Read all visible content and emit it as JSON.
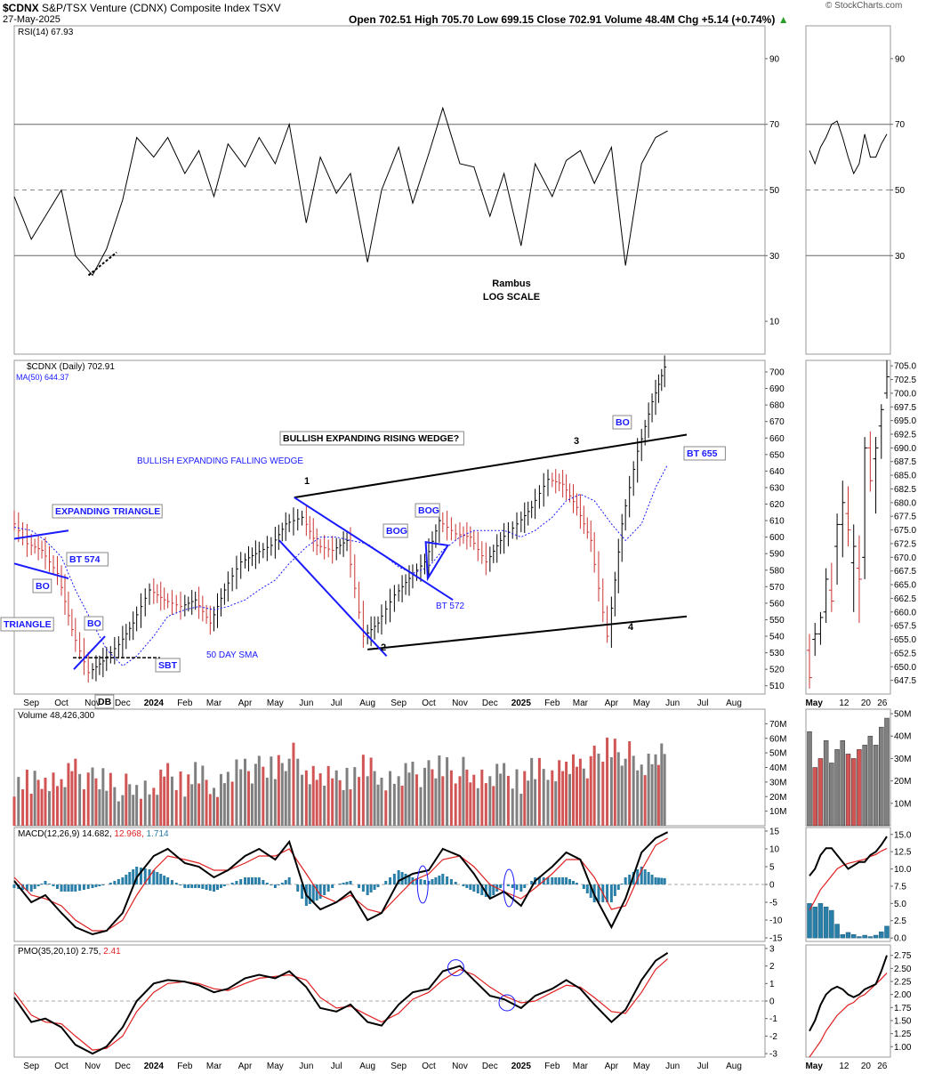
{
  "header": {
    "symbol": "$CDNX",
    "name": "S&P/TSX Venture (CDNX) Composite Index",
    "exchange": "TSXV",
    "date": "27-May-2025",
    "ohlc_text": "Open 702.51  High 705.70  Low 699.15  Close 702.91  Volume 48.4M  Chg +5.14 (+0.74%)",
    "change_arrow": "▲",
    "watermark": "© StockCharts.com"
  },
  "colors": {
    "up": "#000000",
    "down": "#cc3333",
    "accent": "#1a1aff",
    "vol_up": "#808080",
    "vol_down": "#d25555",
    "hist": "#2a7fa8"
  },
  "chart_data": [
    {
      "type": "line",
      "panel": "rsi",
      "legend": "RSI(14) 67.93",
      "ylim": [
        0,
        100
      ],
      "yticks": [
        10,
        30,
        50,
        70,
        90
      ],
      "lines": [
        30,
        50,
        70
      ],
      "x": [
        "2023-08-15",
        "2023-09-01",
        "2023-09-15",
        "2023-10-01",
        "2023-10-15",
        "2023-11-01",
        "2023-11-15",
        "2023-12-01",
        "2023-12-15",
        "2024-01-01",
        "2024-01-15",
        "2024-02-01",
        "2024-02-15",
        "2024-03-01",
        "2024-03-15",
        "2024-04-01",
        "2024-04-15",
        "2024-05-01",
        "2024-05-15",
        "2024-06-01",
        "2024-06-15",
        "2024-07-01",
        "2024-07-15",
        "2024-08-01",
        "2024-08-15",
        "2024-09-01",
        "2024-09-15",
        "2024-10-01",
        "2024-10-15",
        "2024-11-01",
        "2024-11-15",
        "2024-12-01",
        "2024-12-15",
        "2025-01-01",
        "2025-01-15",
        "2025-02-01",
        "2025-02-15",
        "2025-03-01",
        "2025-03-15",
        "2025-04-01",
        "2025-04-15",
        "2025-05-01",
        "2025-05-15",
        "2025-05-27"
      ],
      "values": [
        48,
        35,
        42,
        50,
        30,
        24,
        32,
        47,
        66,
        60,
        66,
        55,
        62,
        48,
        64,
        57,
        66,
        58,
        70,
        40,
        60,
        49,
        55,
        28,
        50,
        63,
        46,
        61,
        75,
        58,
        57,
        42,
        55,
        33,
        58,
        48,
        59,
        62,
        52,
        63,
        27,
        58,
        66,
        68
      ],
      "notes": [
        "Rambus",
        "LOG SCALE"
      ]
    },
    {
      "type": "candlestick",
      "panel": "price",
      "legend": "$CDNX (Daily) 702.91",
      "ma_legend": "MA(50) 644.37",
      "ylim": [
        505,
        707
      ],
      "yticks": [
        510,
        520,
        530,
        540,
        550,
        560,
        570,
        580,
        590,
        600,
        610,
        620,
        630,
        640,
        650,
        660,
        670,
        680,
        690,
        700
      ],
      "x": [
        "2023-08-15",
        "2023-09-01",
        "2023-09-15",
        "2023-10-01",
        "2023-10-15",
        "2023-11-01",
        "2023-11-15",
        "2023-12-01",
        "2023-12-15",
        "2024-01-01",
        "2024-01-15",
        "2024-02-01",
        "2024-02-15",
        "2024-03-01",
        "2024-03-15",
        "2024-04-01",
        "2024-04-15",
        "2024-05-01",
        "2024-05-15",
        "2024-06-01",
        "2024-06-15",
        "2024-07-01",
        "2024-07-15",
        "2024-08-01",
        "2024-08-15",
        "2024-09-01",
        "2024-09-15",
        "2024-10-01",
        "2024-10-15",
        "2024-11-01",
        "2024-11-15",
        "2024-12-01",
        "2024-12-15",
        "2025-01-01",
        "2025-01-15",
        "2025-02-01",
        "2025-02-15",
        "2025-03-01",
        "2025-03-15",
        "2025-04-01",
        "2025-04-15",
        "2025-05-01",
        "2025-05-15",
        "2025-05-27"
      ],
      "close": [
        612,
        596,
        592,
        578,
        544,
        518,
        525,
        535,
        548,
        568,
        562,
        558,
        562,
        548,
        568,
        585,
        590,
        595,
        608,
        612,
        595,
        592,
        598,
        540,
        548,
        565,
        575,
        585,
        610,
        602,
        600,
        585,
        598,
        608,
        618,
        635,
        632,
        618,
        598,
        540,
        608,
        652,
        682,
        703
      ],
      "ma50": [
        606,
        604,
        598,
        588,
        568,
        548,
        532,
        522,
        528,
        540,
        552,
        556,
        558,
        556,
        558,
        562,
        568,
        574,
        584,
        594,
        600,
        600,
        598,
        596,
        590,
        582,
        578,
        582,
        592,
        600,
        604,
        604,
        604,
        600,
        604,
        612,
        622,
        626,
        622,
        608,
        598,
        608,
        630,
        644
      ],
      "annotations": [
        {
          "text": "EXPANDING TRIANGLE",
          "style": "blue-box"
        },
        {
          "text": "BT 574",
          "style": "blue-box"
        },
        {
          "text": "BO",
          "style": "blue-box"
        },
        {
          "text": "TRIANGLE",
          "style": "blue-box"
        },
        {
          "text": "BO",
          "style": "blue-box"
        },
        {
          "text": "SBT",
          "style": "blue-box"
        },
        {
          "text": "DB",
          "style": "black-box"
        },
        {
          "text": "50 DAY SMA",
          "style": "blue-plain"
        },
        {
          "text": "BULLISH EXPANDING FALLING WEDGE",
          "style": "blue-plain"
        },
        {
          "text": "BULLISH EXPANDING RISING WEDGE?",
          "style": "black-box"
        },
        {
          "text": "BOG",
          "style": "blue-box"
        },
        {
          "text": "BOG",
          "style": "blue-box"
        },
        {
          "text": "BT 572",
          "style": "blue-plain"
        },
        {
          "text": "BO",
          "style": "blue-box"
        },
        {
          "text": "BT 655",
          "style": "blue-box"
        },
        {
          "text": "1",
          "style": "label"
        },
        {
          "text": "2",
          "style": "label"
        },
        {
          "text": "3",
          "style": "label"
        },
        {
          "text": "4",
          "style": "label"
        }
      ],
      "trendlines": [
        {
          "from": [
            "2024-05-20",
            624
          ],
          "to": [
            "2025-06-15",
            662
          ]
        },
        {
          "from": [
            "2024-08-01",
            532
          ],
          "to": [
            "2025-06-15",
            552
          ]
        },
        {
          "from": [
            "2024-05-20",
            624
          ],
          "to": [
            "2024-10-25",
            562
          ]
        },
        {
          "from": [
            "2024-05-05",
            598
          ],
          "to": [
            "2024-08-20",
            528
          ]
        }
      ]
    },
    {
      "type": "bar",
      "panel": "volume",
      "legend": "Volume 48,426,300",
      "ylim": [
        0,
        80
      ],
      "yticks": [
        "10M",
        "20M",
        "30M",
        "40M",
        "50M",
        "60M",
        "70M"
      ],
      "x": [
        "2023-08-15",
        "2023-09-01",
        "2023-09-15",
        "2023-10-01",
        "2023-10-15",
        "2023-11-01",
        "2023-11-15",
        "2023-12-01",
        "2023-12-15",
        "2024-01-01",
        "2024-01-15",
        "2024-02-01",
        "2024-02-15",
        "2024-03-01",
        "2024-03-15",
        "2024-04-01",
        "2024-04-15",
        "2024-05-01",
        "2024-05-15",
        "2024-06-01",
        "2024-06-15",
        "2024-07-01",
        "2024-07-15",
        "2024-08-01",
        "2024-08-15",
        "2024-09-01",
        "2024-09-15",
        "2024-10-01",
        "2024-10-15",
        "2024-11-01",
        "2024-11-15",
        "2024-12-01",
        "2024-12-15",
        "2025-01-01",
        "2025-01-15",
        "2025-02-01",
        "2025-02-15",
        "2025-03-01",
        "2025-03-15",
        "2025-04-01",
        "2025-04-15",
        "2025-05-01",
        "2025-05-15",
        "2025-05-27"
      ],
      "values": [
        30,
        28,
        35,
        30,
        40,
        30,
        32,
        25,
        28,
        22,
        35,
        30,
        35,
        28,
        35,
        40,
        38,
        40,
        50,
        38,
        32,
        30,
        35,
        40,
        35,
        32,
        38,
        35,
        42,
        38,
        35,
        30,
        35,
        32,
        38,
        40,
        42,
        40,
        45,
        55,
        50,
        42,
        45,
        48
      ]
    },
    {
      "type": "line",
      "panel": "macd",
      "legend": "MACD(12,26,9) 14.682, 12.968, 1.714",
      "ylim": [
        -16,
        16
      ],
      "yticks": [
        -15,
        -10,
        -5,
        0,
        5,
        10,
        15
      ],
      "x": [
        "2023-08-15",
        "2023-09-01",
        "2023-09-15",
        "2023-10-01",
        "2023-10-15",
        "2023-11-01",
        "2023-11-15",
        "2023-12-01",
        "2023-12-15",
        "2024-01-01",
        "2024-01-15",
        "2024-02-01",
        "2024-02-15",
        "2024-03-01",
        "2024-03-15",
        "2024-04-01",
        "2024-04-15",
        "2024-05-01",
        "2024-05-15",
        "2024-06-01",
        "2024-06-15",
        "2024-07-01",
        "2024-07-15",
        "2024-08-01",
        "2024-08-15",
        "2024-09-01",
        "2024-09-15",
        "2024-10-01",
        "2024-10-15",
        "2024-11-01",
        "2024-11-15",
        "2024-12-01",
        "2024-12-15",
        "2025-01-01",
        "2025-01-15",
        "2025-02-01",
        "2025-02-15",
        "2025-03-01",
        "2025-03-15",
        "2025-04-01",
        "2025-04-15",
        "2025-05-01",
        "2025-05-15",
        "2025-05-27"
      ],
      "macd": [
        1,
        -5,
        -3,
        -8,
        -12,
        -14,
        -13,
        -8,
        2,
        8,
        10,
        6,
        5,
        2,
        4,
        8,
        10,
        7,
        12,
        -3,
        -7,
        -5,
        -2,
        -10,
        -8,
        1,
        3,
        4,
        10,
        8,
        3,
        -4,
        -2,
        -6,
        1,
        5,
        9,
        7,
        -3,
        -12,
        -4,
        9,
        13,
        14.7
      ],
      "signal": [
        2,
        -3,
        -4,
        -6,
        -10,
        -13,
        -13,
        -10,
        -3,
        4,
        8,
        7,
        6,
        4,
        4,
        6,
        8,
        8,
        10,
        3,
        -3,
        -5,
        -3,
        -7,
        -8,
        -3,
        1,
        3,
        7,
        8,
        5,
        0,
        -2,
        -4,
        -1,
        3,
        7,
        7,
        2,
        -7,
        -6,
        4,
        11,
        13
      ],
      "histogram": [
        -1,
        -2,
        1,
        -2,
        -2,
        -1,
        0,
        2,
        5,
        4,
        2,
        -1,
        -1,
        -2,
        0,
        2,
        2,
        -1,
        2,
        -6,
        -4,
        0,
        1,
        -3,
        0,
        4,
        2,
        1,
        3,
        0,
        -2,
        -4,
        0,
        -2,
        2,
        2,
        2,
        0,
        -5,
        -5,
        2,
        5,
        2,
        1.7
      ]
    },
    {
      "type": "line",
      "panel": "pmo",
      "legend": "PMO(35,20,10) 2.75, 2.41",
      "ylim": [
        -3.2,
        3.2
      ],
      "yticks": [
        -3,
        -2,
        -1,
        0,
        1,
        2,
        3
      ],
      "x": [
        "2023-08-15",
        "2023-09-01",
        "2023-09-15",
        "2023-10-01",
        "2023-10-15",
        "2023-11-01",
        "2023-11-15",
        "2023-12-01",
        "2023-12-15",
        "2024-01-01",
        "2024-01-15",
        "2024-02-01",
        "2024-02-15",
        "2024-03-01",
        "2024-03-15",
        "2024-04-01",
        "2024-04-15",
        "2024-05-01",
        "2024-05-15",
        "2024-06-01",
        "2024-06-15",
        "2024-07-01",
        "2024-07-15",
        "2024-08-01",
        "2024-08-15",
        "2024-09-01",
        "2024-09-15",
        "2024-10-01",
        "2024-10-15",
        "2024-11-01",
        "2024-11-15",
        "2024-12-01",
        "2024-12-15",
        "2025-01-01",
        "2025-01-15",
        "2025-02-01",
        "2025-02-15",
        "2025-03-01",
        "2025-03-15",
        "2025-04-01",
        "2025-04-15",
        "2025-05-01",
        "2025-05-15",
        "2025-05-27"
      ],
      "pmo": [
        0.2,
        -1.2,
        -1.0,
        -1.5,
        -2.5,
        -3.0,
        -2.6,
        -1.5,
        0,
        1.0,
        1.2,
        1.1,
        0.9,
        0.5,
        0.7,
        1.3,
        1.5,
        1.3,
        1.7,
        0.8,
        -0.4,
        -0.6,
        -0.2,
        -1.2,
        -1.4,
        -0.2,
        0.5,
        0.7,
        1.7,
        2.0,
        1.2,
        0.3,
        0.1,
        -0.4,
        0.3,
        0.7,
        1.2,
        0.7,
        -0.2,
        -1.2,
        -0.5,
        1.2,
        2.3,
        2.75
      ],
      "signal": [
        0.5,
        -0.8,
        -1.2,
        -1.3,
        -2.0,
        -2.8,
        -2.7,
        -2.0,
        -0.6,
        0.5,
        1.0,
        1.1,
        1.0,
        0.7,
        0.6,
        1.0,
        1.3,
        1.4,
        1.5,
        1.2,
        0.2,
        -0.4,
        -0.3,
        -0.8,
        -1.2,
        -0.7,
        0.1,
        0.5,
        1.2,
        1.8,
        1.5,
        0.8,
        0.3,
        -0.1,
        0,
        0.5,
        0.9,
        0.8,
        0.2,
        -0.6,
        -0.7,
        0.5,
        1.8,
        2.41
      ]
    }
  ],
  "x_axis": {
    "labels": [
      {
        "d": "2023-09-01",
        "t": "Sep"
      },
      {
        "d": "2023-10-01",
        "t": "Oct"
      },
      {
        "d": "2023-11-01",
        "t": "Nov"
      },
      {
        "d": "2023-12-01",
        "t": "Dec"
      },
      {
        "d": "2024-01-01",
        "t": "2024",
        "bold": true
      },
      {
        "d": "2024-02-01",
        "t": "Feb"
      },
      {
        "d": "2024-03-01",
        "t": "Mar"
      },
      {
        "d": "2024-04-01",
        "t": "Apr"
      },
      {
        "d": "2024-05-01",
        "t": "May"
      },
      {
        "d": "2024-06-01",
        "t": "Jun"
      },
      {
        "d": "2024-07-01",
        "t": "Jul"
      },
      {
        "d": "2024-08-01",
        "t": "Aug"
      },
      {
        "d": "2024-09-01",
        "t": "Sep"
      },
      {
        "d": "2024-10-01",
        "t": "Oct"
      },
      {
        "d": "2024-11-01",
        "t": "Nov"
      },
      {
        "d": "2024-12-01",
        "t": "Dec"
      },
      {
        "d": "2025-01-01",
        "t": "2025",
        "bold": true
      },
      {
        "d": "2025-02-01",
        "t": "Feb"
      },
      {
        "d": "2025-03-01",
        "t": "Mar"
      },
      {
        "d": "2025-04-01",
        "t": "Apr"
      },
      {
        "d": "2025-05-01",
        "t": "May"
      },
      {
        "d": "2025-06-01",
        "t": "Jun"
      },
      {
        "d": "2025-07-01",
        "t": "Jul"
      },
      {
        "d": "2025-08-01",
        "t": "Aug"
      }
    ],
    "start": "2023-08-15",
    "end": "2025-09-01"
  },
  "zoom": {
    "x_labels": [
      {
        "d": "2025-05-01",
        "t": "May",
        "bold": true
      },
      {
        "d": "2025-05-12",
        "t": "12"
      },
      {
        "d": "2025-05-20",
        "t": "20"
      },
      {
        "d": "2025-05-26",
        "t": "26"
      }
    ],
    "start": "2025-04-28",
    "end": "2025-05-29",
    "rsi_yticks": [
      30,
      50,
      70,
      90
    ],
    "rsi": [
      62,
      58,
      63,
      66,
      70,
      71,
      66,
      60,
      55,
      58,
      67,
      60,
      60,
      64,
      67
    ],
    "price_yticks": [
      647.5,
      650.0,
      652.5,
      655.0,
      657.5,
      660.0,
      662.5,
      665.0,
      667.5,
      670.0,
      672.5,
      675.0,
      677.5,
      680.0,
      682.5,
      685.0,
      687.5,
      690.0,
      692.5,
      695.0,
      697.5,
      700.0,
      702.5,
      705.0
    ],
    "ylim_price": [
      645,
      706
    ],
    "ohlc": [
      [
        653,
        656,
        646,
        648
      ],
      [
        655,
        658,
        652,
        656
      ],
      [
        656,
        660,
        654,
        659
      ],
      [
        660,
        668,
        658,
        666
      ],
      [
        664,
        669,
        660,
        662
      ],
      [
        672,
        678,
        665,
        676
      ],
      [
        676,
        684,
        670,
        680
      ],
      [
        678,
        683,
        672,
        675
      ],
      [
        669,
        676,
        660,
        672
      ],
      [
        668,
        674,
        658,
        666
      ],
      [
        670,
        692,
        666,
        690
      ],
      [
        690,
        693,
        682,
        684
      ],
      [
        688,
        692,
        678,
        690
      ],
      [
        694,
        698,
        688,
        697
      ],
      [
        700,
        706,
        699,
        703
      ]
    ],
    "volume_yticks": [
      "10M",
      "20M",
      "30M",
      "40M",
      "50M"
    ],
    "volume": [
      42,
      26,
      30,
      38,
      28,
      34,
      38,
      32,
      30,
      34,
      36,
      40,
      36,
      44,
      48
    ],
    "volume_up": [
      true,
      false,
      false,
      true,
      true,
      true,
      true,
      false,
      false,
      false,
      true,
      true,
      true,
      true,
      true
    ],
    "macd_yticks": [
      0.0,
      2.5,
      5.0,
      7.5,
      10.0,
      12.5,
      15.0
    ],
    "macd": [
      9,
      10,
      12,
      13,
      13,
      12,
      11,
      10,
      10.5,
      11,
      11,
      12,
      12.5,
      13.5,
      14.7
    ],
    "macd_signal": [
      4,
      5.5,
      7,
      8,
      9,
      10,
      10.5,
      10.8,
      11,
      11.2,
      11.4,
      11.8,
      12.1,
      12.6,
      12.97
    ],
    "macd_hist": [
      5,
      4.5,
      5,
      4.5,
      4,
      2,
      0.5,
      -0.8,
      -0.5,
      -0.2,
      -0.4,
      0.2,
      0.4,
      0.9,
      1.71
    ],
    "pmo_yticks": [
      1.0,
      1.25,
      1.5,
      1.75,
      2.0,
      2.25,
      2.5,
      2.75
    ],
    "pmo": [
      1.3,
      1.5,
      1.8,
      2.0,
      2.1,
      2.15,
      2.1,
      2.0,
      1.95,
      2.0,
      2.1,
      2.15,
      2.2,
      2.45,
      2.75
    ],
    "pmo_signal": [
      0.8,
      0.95,
      1.1,
      1.3,
      1.45,
      1.6,
      1.7,
      1.8,
      1.85,
      1.95,
      2.0,
      2.1,
      2.2,
      2.3,
      2.41
    ]
  }
}
